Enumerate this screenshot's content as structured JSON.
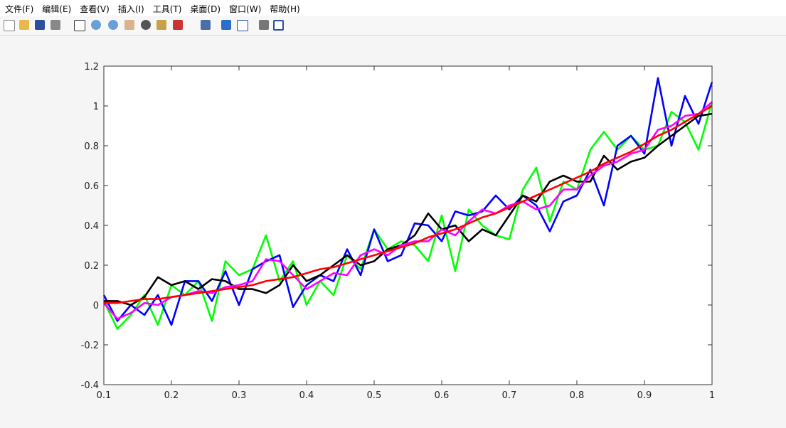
{
  "menu": [
    "文件(F)",
    "编辑(E)",
    "查看(V)",
    "插入(I)",
    "工具(T)",
    "桌面(D)",
    "窗口(W)",
    "帮助(H)"
  ],
  "chart_data": {
    "type": "line",
    "x": [
      0.1,
      0.12,
      0.14,
      0.16,
      0.18,
      0.2,
      0.22,
      0.24,
      0.26,
      0.28,
      0.3,
      0.32,
      0.34,
      0.36,
      0.38,
      0.4,
      0.42,
      0.44,
      0.46,
      0.48,
      0.5,
      0.52,
      0.54,
      0.56,
      0.58,
      0.6,
      0.62,
      0.64,
      0.66,
      0.68,
      0.7,
      0.72,
      0.74,
      0.76,
      0.78,
      0.8,
      0.82,
      0.84,
      0.86,
      0.88,
      0.9,
      0.92,
      0.94,
      0.96,
      0.98,
      1.0
    ],
    "series": [
      {
        "color": "#00ff00",
        "values": [
          0.02,
          -0.12,
          -0.05,
          0.05,
          -0.1,
          0.1,
          0.05,
          0.12,
          -0.08,
          0.22,
          0.15,
          0.18,
          0.35,
          0.12,
          0.22,
          0.0,
          0.12,
          0.05,
          0.25,
          0.18,
          0.38,
          0.28,
          0.32,
          0.3,
          0.22,
          0.45,
          0.17,
          0.48,
          0.4,
          0.35,
          0.33,
          0.58,
          0.69,
          0.42,
          0.62,
          0.58,
          0.78,
          0.87,
          0.78,
          0.85,
          0.78,
          0.8,
          0.97,
          0.92,
          0.78,
          1.02
        ]
      },
      {
        "color": "#0000ff",
        "values": [
          0.05,
          -0.08,
          0.0,
          -0.05,
          0.05,
          -0.1,
          0.12,
          0.12,
          0.02,
          0.17,
          0.0,
          0.18,
          0.22,
          0.25,
          -0.01,
          0.1,
          0.15,
          0.12,
          0.28,
          0.15,
          0.38,
          0.22,
          0.25,
          0.41,
          0.4,
          0.32,
          0.47,
          0.45,
          0.47,
          0.55,
          0.48,
          0.55,
          0.5,
          0.37,
          0.52,
          0.55,
          0.68,
          0.5,
          0.8,
          0.85,
          0.76,
          1.14,
          0.8,
          1.05,
          0.91,
          1.12
        ]
      },
      {
        "color": "#000000",
        "values": [
          0.02,
          0.02,
          0.0,
          0.04,
          0.14,
          0.1,
          0.12,
          0.08,
          0.13,
          0.12,
          0.08,
          0.08,
          0.06,
          0.1,
          0.2,
          0.12,
          0.15,
          0.2,
          0.25,
          0.2,
          0.22,
          0.28,
          0.3,
          0.35,
          0.46,
          0.38,
          0.4,
          0.32,
          0.38,
          0.35,
          0.45,
          0.55,
          0.52,
          0.62,
          0.65,
          0.62,
          0.62,
          0.75,
          0.68,
          0.72,
          0.74,
          0.8,
          0.85,
          0.9,
          0.95,
          0.96
        ]
      },
      {
        "color": "#ff00ff",
        "values": [
          0.01,
          -0.07,
          -0.04,
          0.01,
          0.0,
          0.04,
          0.05,
          0.07,
          0.06,
          0.09,
          0.1,
          0.12,
          0.23,
          0.22,
          0.15,
          0.08,
          0.12,
          0.16,
          0.15,
          0.25,
          0.28,
          0.25,
          0.3,
          0.32,
          0.32,
          0.38,
          0.35,
          0.42,
          0.48,
          0.46,
          0.5,
          0.52,
          0.48,
          0.5,
          0.58,
          0.58,
          0.65,
          0.7,
          0.72,
          0.76,
          0.78,
          0.88,
          0.9,
          0.95,
          0.96,
          1.02
        ]
      },
      {
        "color": "#ff0000",
        "values": [
          0.01,
          0.01,
          0.02,
          0.03,
          0.03,
          0.04,
          0.05,
          0.06,
          0.07,
          0.08,
          0.09,
          0.1,
          0.12,
          0.13,
          0.14,
          0.16,
          0.18,
          0.19,
          0.21,
          0.23,
          0.25,
          0.27,
          0.29,
          0.31,
          0.34,
          0.36,
          0.38,
          0.41,
          0.44,
          0.46,
          0.49,
          0.52,
          0.55,
          0.58,
          0.61,
          0.64,
          0.67,
          0.71,
          0.74,
          0.77,
          0.81,
          0.85,
          0.88,
          0.92,
          0.96,
          1.0
        ]
      }
    ],
    "xlim": [
      0.1,
      1
    ],
    "ylim": [
      -0.4,
      1.2
    ],
    "xticks": [
      0.1,
      0.2,
      0.3,
      0.4,
      0.5,
      0.6,
      0.7,
      0.8,
      0.9,
      1
    ],
    "yticks": [
      -0.4,
      -0.2,
      0,
      0.2,
      0.4,
      0.6,
      0.8,
      1,
      1.2
    ]
  }
}
